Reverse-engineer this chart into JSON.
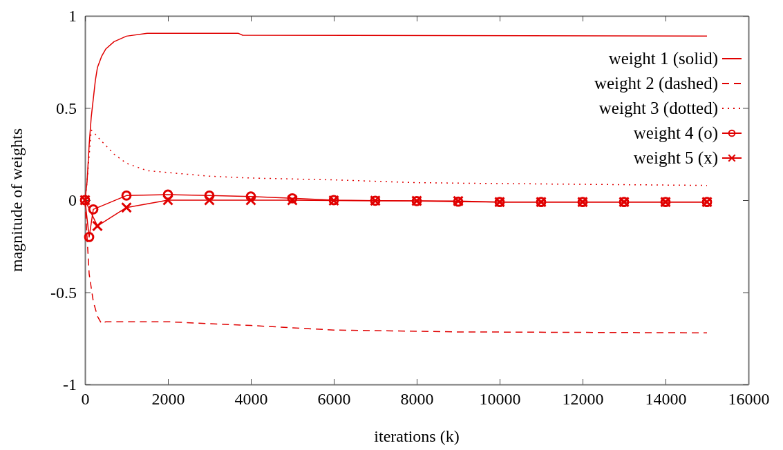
{
  "chart_data": {
    "type": "line",
    "xlabel": "iterations (k)",
    "ylabel": "magnitude of weights",
    "xlim": [
      0,
      16000
    ],
    "xticks": [
      0,
      2000,
      4000,
      6000,
      8000,
      10000,
      12000,
      14000,
      16000
    ],
    "ylim": [
      -1,
      1
    ],
    "yticks": [
      -1,
      -0.5,
      0,
      0.5,
      1
    ],
    "grid": false,
    "legend": "top right",
    "series": [
      {
        "name": "weight 1 (solid)",
        "color": "#e00000",
        "line_style": "solid",
        "marker": "none",
        "x": [
          0,
          50,
          100,
          150,
          200,
          250,
          300,
          400,
          500,
          700,
          1000,
          1500,
          3700,
          3800,
          15000
        ],
        "values": [
          0,
          0.1,
          0.3,
          0.45,
          0.55,
          0.65,
          0.72,
          0.78,
          0.82,
          0.86,
          0.89,
          0.905,
          0.905,
          0.895,
          0.89
        ]
      },
      {
        "name": "weight 2 (dashed)",
        "color": "#e00000",
        "line_style": "dashed",
        "marker": "none",
        "x": [
          0,
          50,
          100,
          200,
          300,
          400,
          500,
          2000,
          4000,
          6000,
          9000,
          15000
        ],
        "values": [
          0,
          -0.2,
          -0.4,
          -0.55,
          -0.63,
          -0.67,
          -0.66,
          -0.66,
          -0.68,
          -0.705,
          -0.715,
          -0.72
        ]
      },
      {
        "name": "weight 3 (dotted)",
        "color": "#e00000",
        "line_style": "dotted",
        "marker": "none",
        "x": [
          0,
          50,
          150,
          200,
          400,
          700,
          1000,
          1500,
          2000,
          3000,
          4000,
          6000,
          8000,
          10000,
          15000
        ],
        "values": [
          0,
          0.1,
          0.38,
          0.37,
          0.32,
          0.25,
          0.2,
          0.16,
          0.15,
          0.13,
          0.12,
          0.11,
          0.095,
          0.09,
          0.08
        ]
      },
      {
        "name": "weight 4 (o)",
        "color": "#e00000",
        "line_style": "solid",
        "marker": "circle",
        "x": [
          0,
          100,
          200,
          1000,
          2000,
          3000,
          4000,
          5000,
          6000,
          7000,
          8000,
          9000,
          10000,
          11000,
          12000,
          13000,
          14000,
          15000
        ],
        "values": [
          0,
          -0.2,
          -0.05,
          0.025,
          0.03,
          0.025,
          0.02,
          0.01,
          0,
          -0.003,
          -0.005,
          -0.008,
          -0.01,
          -0.01,
          -0.01,
          -0.01,
          -0.01,
          -0.01
        ]
      },
      {
        "name": "weight 5 (x)",
        "color": "#e00000",
        "line_style": "solid",
        "marker": "cross",
        "x": [
          0,
          300,
          1000,
          2000,
          3000,
          4000,
          5000,
          6000,
          7000,
          8000,
          9000,
          10000,
          11000,
          12000,
          13000,
          14000,
          15000
        ],
        "values": [
          0,
          -0.14,
          -0.04,
          0,
          0,
          0,
          0,
          -0.002,
          -0.003,
          -0.004,
          -0.005,
          -0.01,
          -0.01,
          -0.01,
          -0.01,
          -0.01,
          -0.01
        ]
      }
    ]
  }
}
